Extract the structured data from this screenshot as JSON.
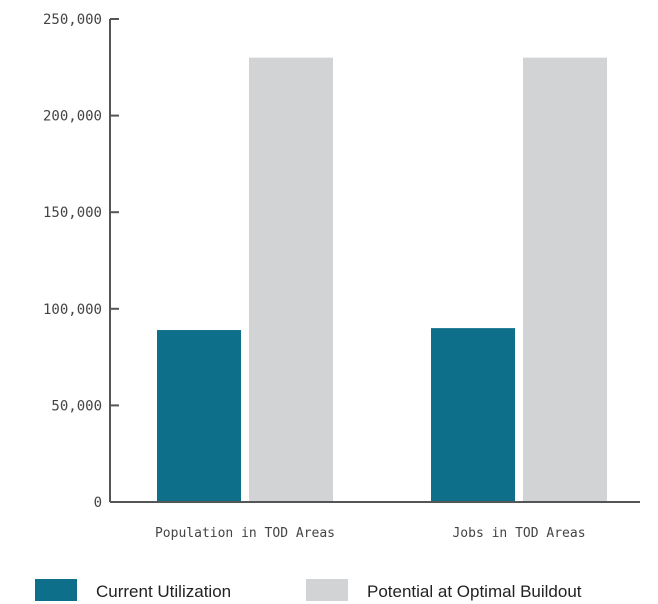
{
  "chart_data": {
    "type": "bar",
    "title": "",
    "xlabel": "",
    "ylabel": "",
    "categories": [
      "Population in TOD Areas",
      "Jobs in TOD Areas"
    ],
    "series": [
      {
        "name": "Current Utilization",
        "values": [
          89000,
          90000
        ],
        "color": "#0e6f8a"
      },
      {
        "name": "Potential at Optimal Buildout",
        "values": [
          230000,
          230000
        ],
        "color": "#d2d3d5"
      }
    ],
    "ylim": [
      0,
      250000
    ],
    "yticks": [
      0,
      50000,
      100000,
      150000,
      200000,
      250000
    ],
    "ytick_labels": [
      "0",
      "50,000",
      "100,000",
      "150,000",
      "200,000",
      "250,000"
    ],
    "grid": false,
    "legend": "bottom"
  }
}
